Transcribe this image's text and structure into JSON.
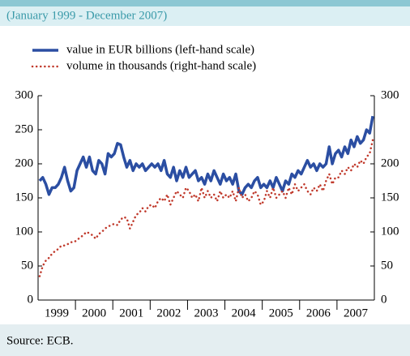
{
  "chart_data": {
    "type": "line",
    "subtitle": "(January 1999 - December 2007)",
    "source": "Source: ECB.",
    "categories": [
      null,
      null,
      null,
      null,
      null,
      null,
      "1999",
      null,
      null,
      null,
      null,
      null,
      null,
      null,
      null,
      null,
      null,
      null,
      "2000",
      null,
      null,
      null,
      null,
      null,
      null,
      null,
      null,
      null,
      null,
      null,
      "2001",
      null,
      null,
      null,
      null,
      null,
      null,
      null,
      null,
      null,
      null,
      null,
      "2002",
      null,
      null,
      null,
      null,
      null,
      null,
      null,
      null,
      null,
      null,
      null,
      "2003",
      null,
      null,
      null,
      null,
      null,
      null,
      null,
      null,
      null,
      null,
      null,
      "2004",
      null,
      null,
      null,
      null,
      null,
      null,
      null,
      null,
      null,
      null,
      null,
      "2005",
      null,
      null,
      null,
      null,
      null,
      null,
      null,
      null,
      null,
      null,
      null,
      "2006",
      null,
      null,
      null,
      null,
      null,
      null,
      null,
      null,
      null,
      null,
      null,
      "2007",
      null,
      null,
      null,
      null,
      null
    ],
    "ylim": [
      0,
      300
    ],
    "yticks": [
      0,
      50,
      100,
      150,
      200,
      250,
      300
    ],
    "y2lim": [
      0,
      300
    ],
    "y2ticks": [
      0,
      50,
      100,
      150,
      200,
      300
    ],
    "grid": false,
    "series": [
      {
        "name": "value in EUR billions (left-hand scale)",
        "color": "#2b4ea2",
        "style": "solid",
        "values": [
          175,
          180,
          170,
          155,
          165,
          165,
          170,
          180,
          195,
          175,
          160,
          165,
          190,
          200,
          210,
          195,
          210,
          190,
          185,
          205,
          200,
          185,
          215,
          210,
          215,
          230,
          228,
          210,
          195,
          205,
          190,
          200,
          195,
          200,
          190,
          195,
          200,
          195,
          200,
          190,
          205,
          185,
          180,
          195,
          175,
          190,
          180,
          195,
          180,
          185,
          190,
          175,
          180,
          170,
          185,
          175,
          190,
          180,
          170,
          185,
          175,
          180,
          170,
          185,
          160,
          155,
          165,
          170,
          165,
          175,
          180,
          165,
          170,
          165,
          175,
          165,
          180,
          170,
          160,
          175,
          170,
          185,
          180,
          190,
          185,
          195,
          205,
          195,
          200,
          190,
          200,
          195,
          200,
          225,
          200,
          215,
          220,
          210,
          225,
          215,
          235,
          225,
          240,
          230,
          235,
          250,
          245,
          270
        ]
      },
      {
        "name": "volume in thousands (right-hand scale)",
        "color": "#c0392b",
        "style": "dotted",
        "axis": "y2",
        "values": [
          35,
          50,
          58,
          62,
          68,
          72,
          75,
          80,
          80,
          82,
          85,
          85,
          88,
          92,
          95,
          100,
          98,
          95,
          90,
          97,
          100,
          105,
          108,
          110,
          112,
          110,
          118,
          122,
          120,
          105,
          115,
          125,
          128,
          135,
          130,
          138,
          140,
          135,
          145,
          150,
          145,
          155,
          140,
          150,
          160,
          155,
          150,
          165,
          160,
          150,
          155,
          145,
          165,
          150,
          160,
          150,
          155,
          145,
          160,
          150,
          155,
          150,
          160,
          145,
          165,
          150,
          155,
          145,
          150,
          160,
          155,
          140,
          145,
          160,
          150,
          165,
          150,
          155,
          160,
          150,
          165,
          155,
          170,
          160,
          165,
          170,
          160,
          155,
          165,
          160,
          170,
          160,
          175,
          185,
          170,
          180,
          180,
          190,
          185,
          195,
          190,
          200,
          195,
          205,
          200,
          210,
          215,
          235
        ]
      }
    ]
  }
}
